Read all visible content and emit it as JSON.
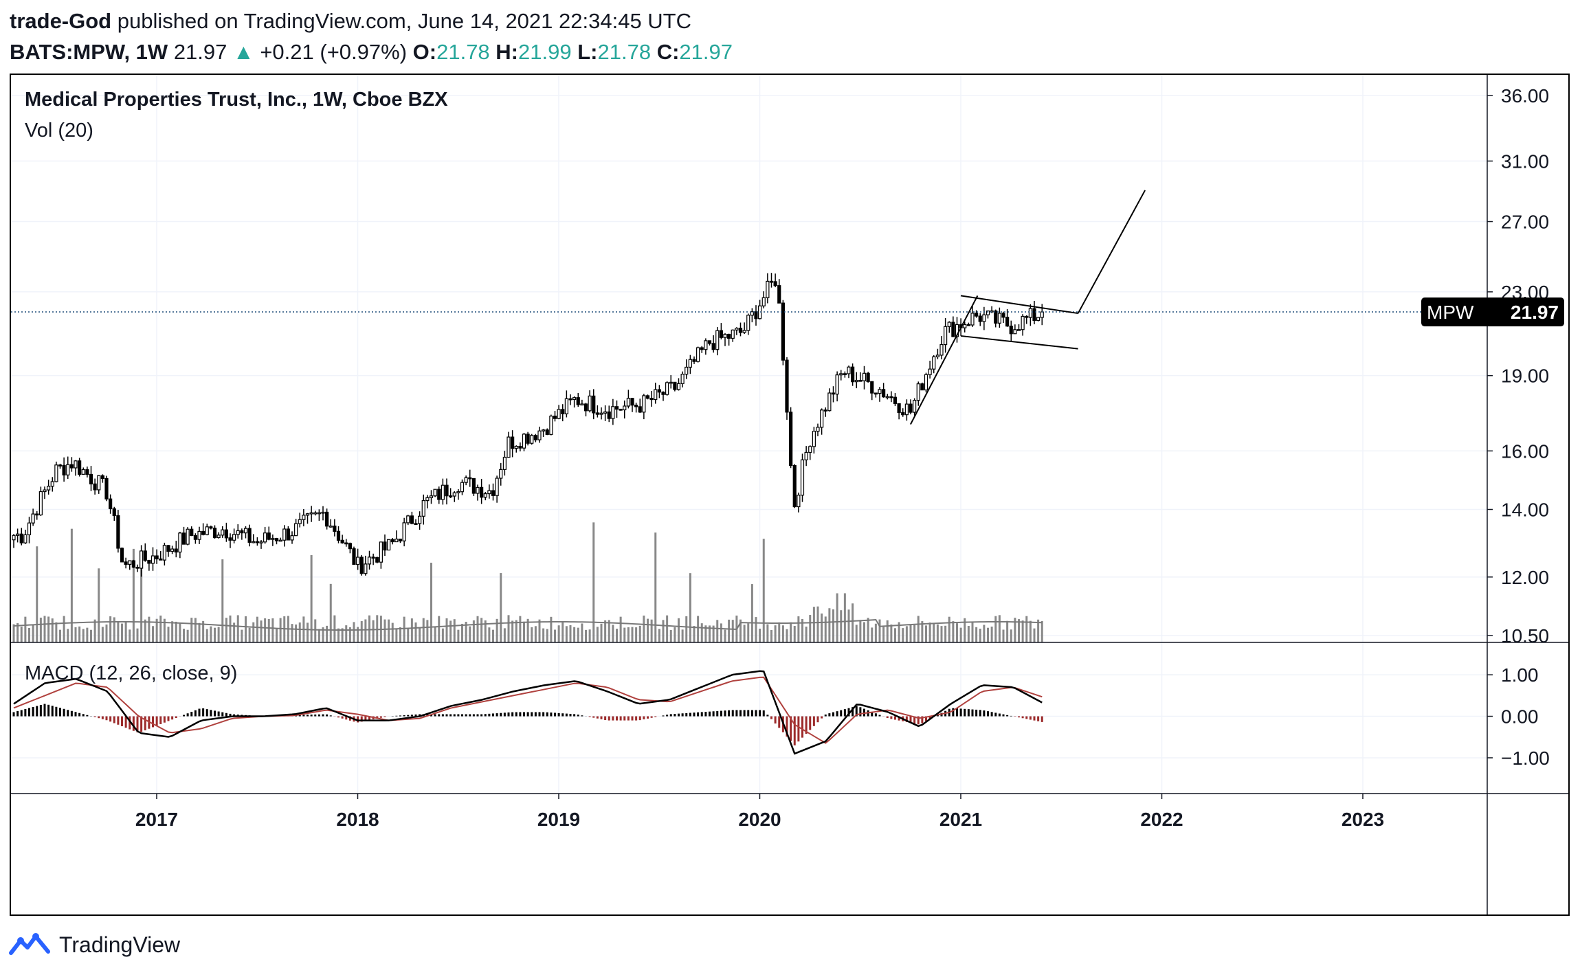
{
  "header": {
    "author": "trade-God",
    "published": "published on TradingView.com, June 14, 2021 22:34:45 UTC",
    "symbol": "BATS:MPW, 1W",
    "last": "21.97",
    "change": "+0.21 (+0.97%)",
    "o_label": "O:",
    "o": "21.78",
    "h_label": "H:",
    "h": "21.99",
    "l_label": "L:",
    "l": "21.78",
    "c_label": "C:",
    "c": "21.97"
  },
  "chart_data": [
    {
      "type": "candlestick",
      "title": "Medical Properties Trust, Inc., 1W, Cboe BZX",
      "volume_label": "Vol (20)",
      "scale": "log",
      "price_ticks": [
        "36.00",
        "31.00",
        "27.00",
        "23.00",
        "19.00",
        "16.00",
        "14.00",
        "12.00",
        "10.50"
      ],
      "time_ticks": [
        "2017",
        "2018",
        "2019",
        "2020",
        "2021",
        "2022",
        "2023"
      ],
      "last_price_label": {
        "symbol": "MPW",
        "price": "21.97"
      },
      "close_series": [
        {
          "date": "2016-05",
          "close": 13.2
        },
        {
          "date": "2016-07",
          "close": 15.3
        },
        {
          "date": "2016-08",
          "close": 15.6
        },
        {
          "date": "2016-10",
          "close": 14.6
        },
        {
          "date": "2016-11",
          "close": 12.3
        },
        {
          "date": "2017-01",
          "close": 12.6
        },
        {
          "date": "2017-03",
          "close": 13.2
        },
        {
          "date": "2017-05",
          "close": 13.4
        },
        {
          "date": "2017-07",
          "close": 13.0
        },
        {
          "date": "2017-09",
          "close": 13.3
        },
        {
          "date": "2017-11",
          "close": 13.9
        },
        {
          "date": "2018-01",
          "close": 12.3
        },
        {
          "date": "2018-03",
          "close": 12.9
        },
        {
          "date": "2018-05",
          "close": 14.2
        },
        {
          "date": "2018-07",
          "close": 14.9
        },
        {
          "date": "2018-09",
          "close": 14.6
        },
        {
          "date": "2018-10",
          "close": 16.3
        },
        {
          "date": "2018-12",
          "close": 16.8
        },
        {
          "date": "2019-02",
          "close": 18.0
        },
        {
          "date": "2019-04",
          "close": 17.6
        },
        {
          "date": "2019-06",
          "close": 17.8
        },
        {
          "date": "2019-08",
          "close": 18.5
        },
        {
          "date": "2019-10",
          "close": 20.5
        },
        {
          "date": "2019-12",
          "close": 21.0
        },
        {
          "date": "2020-02",
          "close": 23.8
        },
        {
          "date": "2020-03",
          "close": 14.0
        },
        {
          "date": "2020-04",
          "close": 16.5
        },
        {
          "date": "2020-06",
          "close": 19.2
        },
        {
          "date": "2020-08",
          "close": 18.5
        },
        {
          "date": "2020-10",
          "close": 17.5
        },
        {
          "date": "2020-12",
          "close": 21.0
        },
        {
          "date": "2021-02",
          "close": 21.8
        },
        {
          "date": "2021-04",
          "close": 21.3
        },
        {
          "date": "2021-06",
          "close": 21.97
        }
      ],
      "annotations": [
        "ascending flagpole trendline",
        "descending channel (flag) upper line",
        "descending channel (flag) lower line",
        "projected breakout line"
      ]
    },
    {
      "type": "line",
      "title": "MACD (12, 26, close, 9)",
      "y_ticks": [
        "1.00",
        "0.00",
        "−1.00"
      ],
      "ylim": [
        -1.1,
        1.3
      ],
      "series": [
        {
          "values": [
            0.3,
            0.8,
            0.9,
            0.6,
            -0.4,
            -0.5,
            -0.1,
            0.0,
            0.0,
            0.05,
            0.2,
            -0.1,
            -0.1,
            0.0,
            0.25,
            0.4,
            0.6,
            0.75,
            0.85,
            0.6,
            0.3,
            0.4,
            0.7,
            1.0,
            1.1,
            -0.9,
            -0.6,
            0.3,
            0.1,
            -0.25,
            0.3,
            0.75,
            0.7,
            0.3
          ]
        },
        {
          "values": [
            0.2,
            0.5,
            0.8,
            0.7,
            0.0,
            -0.4,
            -0.3,
            -0.05,
            0.0,
            0.02,
            0.15,
            0.05,
            -0.1,
            -0.05,
            0.2,
            0.35,
            0.5,
            0.65,
            0.8,
            0.7,
            0.4,
            0.35,
            0.6,
            0.85,
            0.95,
            -0.2,
            -0.65,
            0.05,
            0.15,
            -0.05,
            0.1,
            0.6,
            0.7,
            0.45
          ]
        }
      ]
    }
  ],
  "footer": {
    "brand": "TradingView"
  },
  "colors": {
    "up": "#26a69a",
    "macd_line": "#000000",
    "signal_line": "#b0413e",
    "hist_pos": "#000000",
    "hist_neg": "#9c2b2b",
    "volume_ma": "#787878"
  }
}
